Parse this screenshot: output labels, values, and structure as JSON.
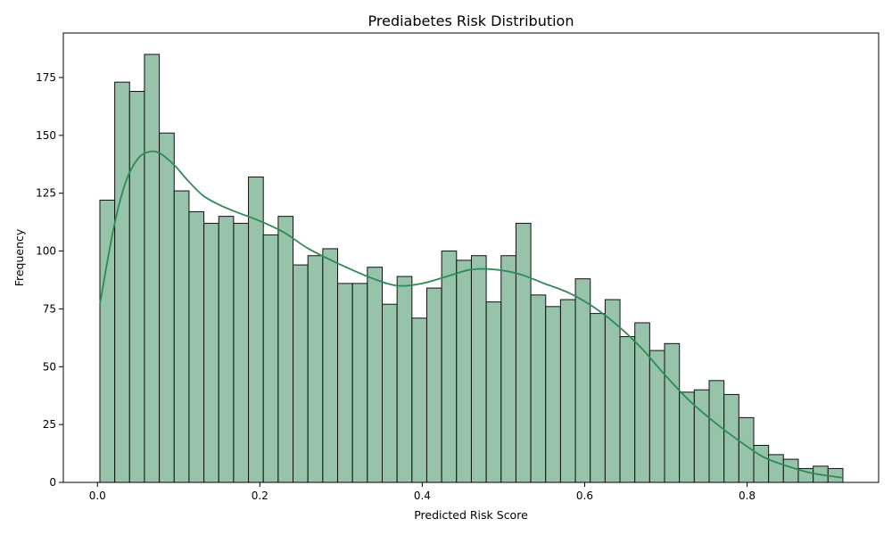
{
  "chart_data": {
    "type": "bar",
    "title": "Prediabetes Risk Distribution",
    "xlabel": "Predicted Risk Score",
    "ylabel": "Frequency",
    "xlim": [
      -0.042,
      0.962
    ],
    "ylim": [
      0,
      194.25
    ],
    "xticks": [
      0.0,
      0.2,
      0.4,
      0.6,
      0.8
    ],
    "xtick_labels": [
      "0.0",
      "0.2",
      "0.4",
      "0.6",
      "0.8"
    ],
    "yticks": [
      0,
      25,
      50,
      75,
      100,
      125,
      150,
      175
    ],
    "ytick_labels": [
      "0",
      "25",
      "50",
      "75",
      "100",
      "125",
      "150",
      "175"
    ],
    "grid": false,
    "bin_start": 0.003,
    "bin_end": 0.918,
    "values": [
      122,
      173,
      169,
      185,
      151,
      126,
      117,
      112,
      115,
      112,
      132,
      107,
      115,
      94,
      98,
      101,
      86,
      86,
      93,
      77,
      89,
      71,
      84,
      100,
      96,
      98,
      78,
      98,
      112,
      81,
      76,
      79,
      88,
      73,
      79,
      63,
      69,
      57,
      60,
      39,
      40,
      44,
      38,
      28,
      16,
      12,
      10,
      6,
      7,
      6
    ],
    "kde": {
      "x": [
        0.003,
        0.02,
        0.035,
        0.05,
        0.065,
        0.078,
        0.095,
        0.11,
        0.13,
        0.15,
        0.17,
        0.2,
        0.23,
        0.26,
        0.3,
        0.34,
        0.37,
        0.4,
        0.43,
        0.46,
        0.49,
        0.52,
        0.55,
        0.58,
        0.61,
        0.64,
        0.67,
        0.7,
        0.73,
        0.76,
        0.79,
        0.82,
        0.85,
        0.88,
        0.918
      ],
      "y": [
        77,
        110,
        130,
        140,
        143,
        142,
        137,
        131,
        124,
        120,
        117,
        113,
        108,
        101,
        94,
        88,
        85,
        86,
        89,
        92,
        92,
        90,
        86,
        82,
        76,
        68,
        58,
        46,
        35,
        26,
        18,
        11,
        7,
        4,
        2
      ]
    },
    "colors": {
      "bar_fill": "#96c3a9",
      "bar_edge": "#111111",
      "kde_line": "#2e8b57",
      "axis": "#000000"
    }
  }
}
